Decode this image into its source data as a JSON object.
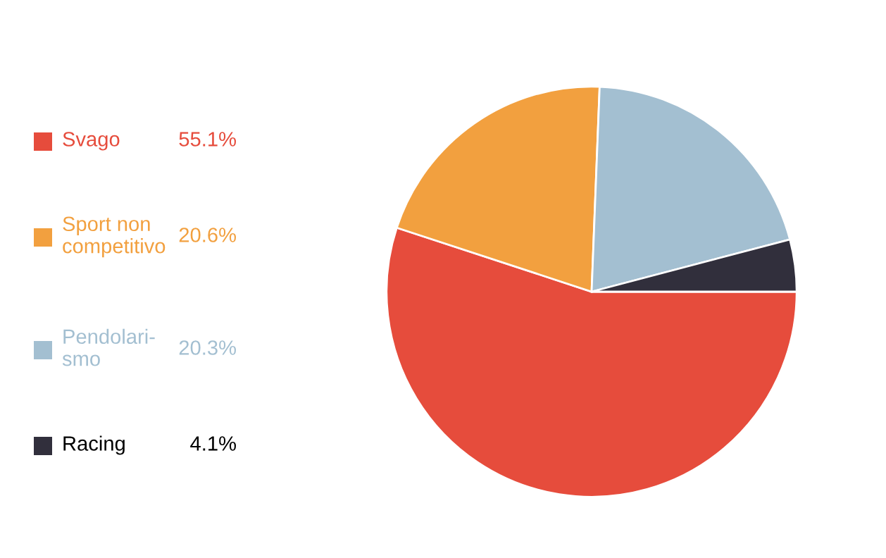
{
  "chart_data": {
    "type": "pie",
    "categories": [
      "Svago",
      "Sport non\ncompetitivo",
      "Pendolari-\nsmo",
      "Racing"
    ],
    "values": [
      55.1,
      20.6,
      20.3,
      4.1
    ],
    "colors": [
      "#e64c3c",
      "#f2a03f",
      "#a3bfd1",
      "#312f3c"
    ],
    "value_labels": [
      "55.1%",
      "20.6%",
      "20.3%",
      "4.1%"
    ],
    "legend": "left"
  }
}
